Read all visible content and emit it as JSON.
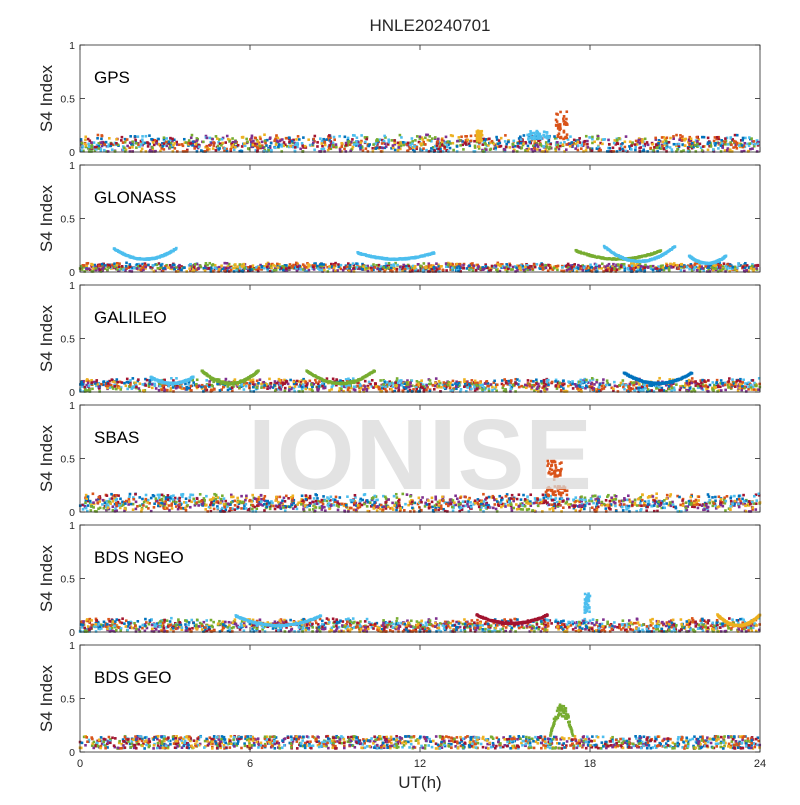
{
  "figure": {
    "title": "HNLE20240701",
    "watermark": "IONISE",
    "xlabel": "UT(h)",
    "x_ticks": [
      0,
      6,
      12,
      18,
      24
    ],
    "series_colors": [
      "#0072BD",
      "#D95319",
      "#EDB120",
      "#7E2F8E",
      "#77AC30",
      "#4DBEEE",
      "#A2142F"
    ]
  },
  "chart_data": [
    {
      "type": "scatter",
      "label": "GPS",
      "ylabel": "S4 Index",
      "xlim": [
        0,
        24
      ],
      "ylim": [
        0,
        1
      ],
      "y_ticks": [
        0,
        0.5,
        1
      ],
      "baseline_range": [
        0.03,
        0.15
      ],
      "features": [
        {
          "x_range": [
            16.8,
            17.2
          ],
          "y_range": [
            0.12,
            0.38
          ],
          "color_index": 1
        },
        {
          "x_range": [
            15.8,
            16.6
          ],
          "y_range": [
            0.12,
            0.2
          ],
          "color_index": 5
        },
        {
          "x_range": [
            14.0,
            14.2
          ],
          "y_range": [
            0.1,
            0.2
          ],
          "color_index": 2
        }
      ]
    },
    {
      "type": "scatter",
      "label": "GLONASS",
      "ylabel": "S4 Index",
      "xlim": [
        0,
        24
      ],
      "ylim": [
        0,
        1
      ],
      "y_ticks": [
        0,
        0.5,
        1
      ],
      "baseline_range": [
        0.02,
        0.08
      ],
      "features": [
        {
          "x_range": [
            1.2,
            3.4
          ],
          "y_range": [
            0.12,
            0.22
          ],
          "color_index": 5,
          "arc": true
        },
        {
          "x_range": [
            9.8,
            12.5
          ],
          "y_range": [
            0.12,
            0.18
          ],
          "color_index": 5,
          "arc": true
        },
        {
          "x_range": [
            17.5,
            20.5
          ],
          "y_range": [
            0.12,
            0.2
          ],
          "color_index": 4,
          "arc": true
        },
        {
          "x_range": [
            18.5,
            21.0
          ],
          "y_range": [
            0.1,
            0.24
          ],
          "color_index": 5,
          "arc": true
        },
        {
          "x_range": [
            21.5,
            22.8
          ],
          "y_range": [
            0.08,
            0.15
          ],
          "color_index": 5,
          "arc": true
        }
      ]
    },
    {
      "type": "scatter",
      "label": "GALILEO",
      "ylabel": "S4 Index",
      "xlim": [
        0,
        24
      ],
      "ylim": [
        0,
        1
      ],
      "y_ticks": [
        0,
        0.5,
        1
      ],
      "baseline_range": [
        0.03,
        0.12
      ],
      "features": [
        {
          "x_range": [
            4.3,
            6.3
          ],
          "y_range": [
            0.08,
            0.2
          ],
          "color_index": 4,
          "arc": true
        },
        {
          "x_range": [
            8.0,
            10.4
          ],
          "y_range": [
            0.08,
            0.2
          ],
          "color_index": 4,
          "arc": true
        },
        {
          "x_range": [
            19.2,
            21.6
          ],
          "y_range": [
            0.08,
            0.18
          ],
          "color_index": 0,
          "arc": true
        },
        {
          "x_range": [
            2.5,
            4.0
          ],
          "y_range": [
            0.08,
            0.14
          ],
          "color_index": 5,
          "arc": true
        }
      ]
    },
    {
      "type": "scatter",
      "label": "SBAS",
      "ylabel": "S4 Index",
      "xlim": [
        0,
        24
      ],
      "ylim": [
        0,
        1
      ],
      "y_ticks": [
        0,
        0.5,
        1
      ],
      "baseline_range": [
        0.04,
        0.16
      ],
      "features": [
        {
          "x_range": [
            16.5,
            17.0
          ],
          "y_range": [
            0.3,
            0.48
          ],
          "color_index": 1
        },
        {
          "x_range": [
            16.4,
            17.2
          ],
          "y_range": [
            0.15,
            0.24
          ],
          "color_index": 1
        }
      ]
    },
    {
      "type": "scatter",
      "label": "BDS NGEO",
      "ylabel": "S4 Index",
      "xlim": [
        0,
        24
      ],
      "ylim": [
        0,
        1
      ],
      "y_ticks": [
        0,
        0.5,
        1
      ],
      "baseline_range": [
        0.02,
        0.12
      ],
      "features": [
        {
          "x_range": [
            17.8,
            18.0
          ],
          "y_range": [
            0.18,
            0.36
          ],
          "color_index": 5
        },
        {
          "x_range": [
            14.0,
            16.5
          ],
          "y_range": [
            0.08,
            0.16
          ],
          "color_index": 6,
          "arc": true
        },
        {
          "x_range": [
            5.5,
            8.5
          ],
          "y_range": [
            0.06,
            0.15
          ],
          "color_index": 5,
          "arc": true
        },
        {
          "x_range": [
            22.5,
            24.0
          ],
          "y_range": [
            0.06,
            0.16
          ],
          "color_index": 2,
          "arc": true
        }
      ]
    },
    {
      "type": "scatter",
      "label": "BDS GEO",
      "ylabel": "S4 Index",
      "xlim": [
        0,
        24
      ],
      "ylim": [
        0,
        1
      ],
      "y_ticks": [
        0,
        0.5,
        1
      ],
      "baseline_range": [
        0.03,
        0.14
      ],
      "flat_levels": [
        0.04,
        0.06,
        0.08,
        0.1,
        0.12,
        0.14
      ],
      "features": [
        {
          "x_range": [
            16.6,
            17.4
          ],
          "y_range": [
            0.15,
            0.45
          ],
          "color_index": 4,
          "peak": true
        }
      ]
    }
  ]
}
